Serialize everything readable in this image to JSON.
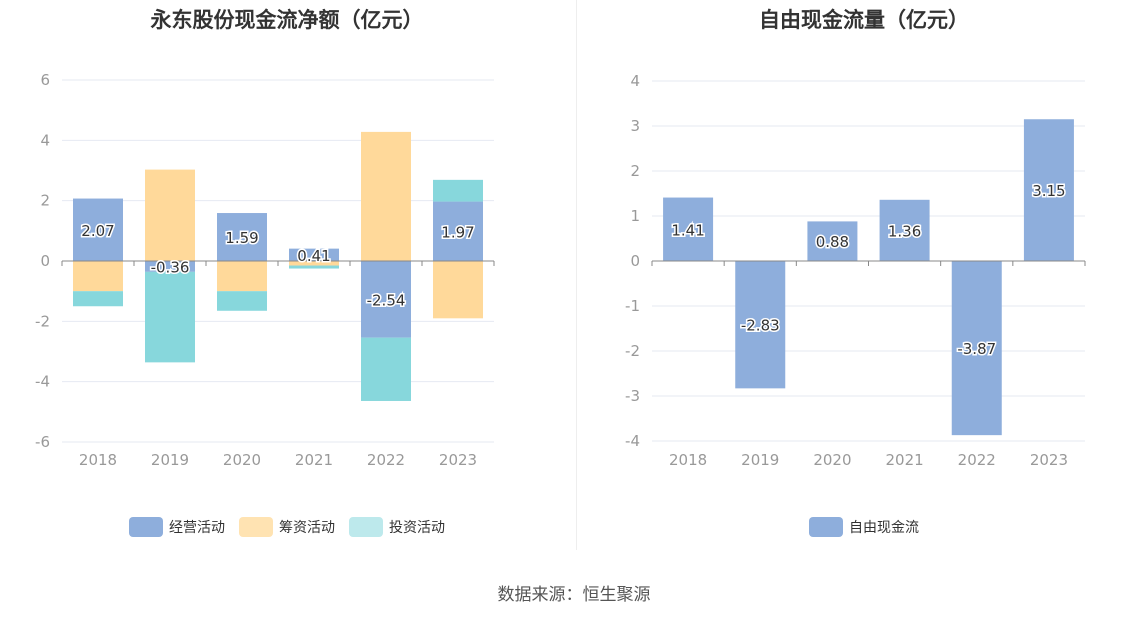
{
  "chart_data": [
    {
      "type": "bar",
      "stacked": true,
      "title": "永东股份现金流净额（亿元）",
      "categories": [
        "2018",
        "2019",
        "2020",
        "2021",
        "2022",
        "2023"
      ],
      "ylim": [
        -6,
        6
      ],
      "yticks": [
        6,
        4,
        2,
        0,
        -2,
        -4,
        -6
      ],
      "series": [
        {
          "name": "经营活动",
          "color": "#8eaedc",
          "values": [
            2.07,
            -0.36,
            1.59,
            0.41,
            -2.54,
            1.97
          ],
          "labels": [
            "2.07",
            "-0.36",
            "1.59",
            "0.41",
            "-2.54",
            "1.97"
          ]
        },
        {
          "name": "筹资活动",
          "color": "#ffd99a",
          "values": [
            -1.0,
            3.03,
            -1.0,
            -0.15,
            4.28,
            -1.9
          ]
        },
        {
          "name": "投资活动",
          "color": "#87d7dc",
          "values": [
            -0.5,
            -3.0,
            -0.65,
            -0.1,
            -2.1,
            0.72
          ]
        }
      ],
      "legend_colors": [
        "#8eaedc",
        "#ffe3b2",
        "#bde9ec"
      ],
      "legend_position": "bottom"
    },
    {
      "type": "bar",
      "title": "自由现金流量（亿元）",
      "categories": [
        "2018",
        "2019",
        "2020",
        "2021",
        "2022",
        "2023"
      ],
      "ylim": [
        -4,
        4
      ],
      "yticks": [
        4,
        3,
        2,
        1,
        0,
        -1,
        -2,
        -3,
        -4
      ],
      "series": [
        {
          "name": "自由现金流",
          "color": "#8eaedc",
          "values": [
            1.41,
            -2.83,
            0.88,
            1.36,
            -3.87,
            3.15
          ],
          "labels": [
            "1.41",
            "-2.83",
            "0.88",
            "1.36",
            "-3.87",
            "3.15"
          ]
        }
      ],
      "legend_colors": [
        "#8eaedc"
      ],
      "legend_position": "bottom"
    }
  ],
  "footer": {
    "source": "数据来源：恒生聚源"
  }
}
